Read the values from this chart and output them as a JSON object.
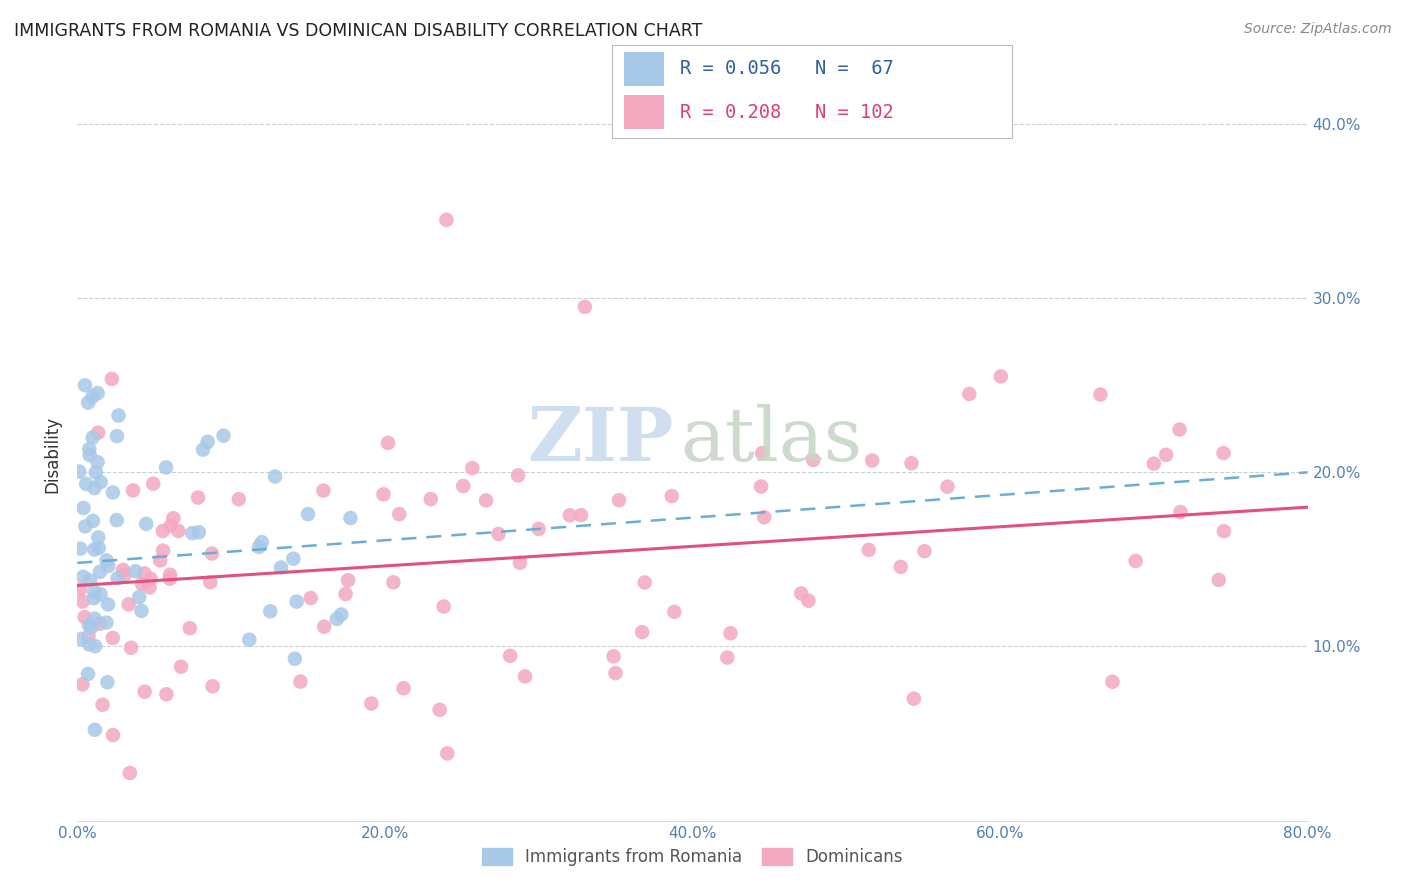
{
  "title": "IMMIGRANTS FROM ROMANIA VS DOMINICAN DISABILITY CORRELATION CHART",
  "source": "Source: ZipAtlas.com",
  "ylabel_label": "Disability",
  "legend_labels": [
    "Immigrants from Romania",
    "Dominicans"
  ],
  "romania_R": "0.056",
  "romania_N": "67",
  "dominican_R": "0.208",
  "dominican_N": "102",
  "romania_color": "#a8c8e8",
  "dominican_color": "#f4a8c0",
  "romania_trendline_color": "#6aaed6",
  "dominican_trendline_color": "#e05080",
  "watermark_zip_color": "#d0dff0",
  "watermark_atlas_color": "#c8d8c8",
  "romania_intercept": 0.148,
  "romania_slope": 0.06,
  "dominican_intercept": 0.135,
  "dominican_slope": 0.065,
  "xlim": [
    0.0,
    0.8
  ],
  "ylim": [
    0.0,
    0.42
  ],
  "xtick_vals": [
    0.0,
    0.2,
    0.4,
    0.6,
    0.8
  ],
  "ytick_vals": [
    0.1,
    0.2,
    0.3,
    0.4
  ]
}
